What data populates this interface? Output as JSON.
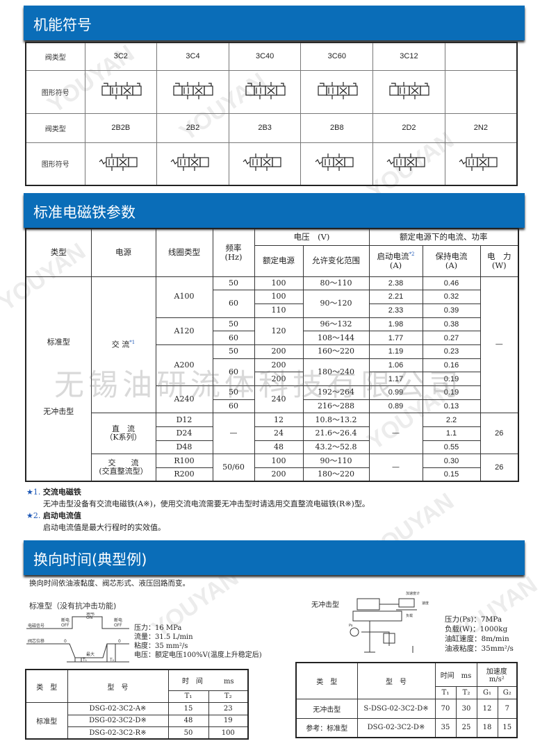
{
  "watermarks": {
    "brand": "YOUYAN",
    "company": "无锡油研流体科技有限公司"
  },
  "colors": {
    "banner": "#0a6db8",
    "star": "#1b56b5"
  },
  "section1": {
    "title": "机能符号",
    "row_label_type": "阀类型",
    "row_label_symbol": "图形符号",
    "types_row1": [
      "3C2",
      "3C4",
      "3C40",
      "3C60",
      "3C12",
      ""
    ],
    "types_row2": [
      "2B2B",
      "2B2",
      "2B3",
      "2B8",
      "2D2",
      "2N2"
    ]
  },
  "section2": {
    "title": "标准电磁铁参数",
    "headers": {
      "type": "类型",
      "power_source": "电源",
      "coil": "线圈类型",
      "freq": "频率",
      "freq_unit": "(Hz)",
      "voltage": "电压　(V)",
      "rated_v": "额定电源",
      "range": "允许变化范围",
      "current_power": "额定电源下的电流、功率",
      "start_current": "启动电流",
      "start_mark": "*2",
      "unit_a": "(A)",
      "hold_current": "保持电流",
      "power": "电　力",
      "power_unit": "(W)"
    },
    "type_std": "标准型",
    "type_noshock": "无冲击型",
    "src_ac": "交 流",
    "src_ac_mark": "*1",
    "src_dc": "直　流",
    "src_dc_sub": "（K系列）",
    "src_rect": "交　　流",
    "src_rect_sub": "(交直整流型）",
    "coils": [
      "A100",
      "A120",
      "A200",
      "A240",
      "D12",
      "D24",
      "D48",
      "R100",
      "R200"
    ],
    "freq": [
      "50",
      "60",
      "50",
      "60",
      "50",
      "60",
      "50",
      "60",
      "—",
      "50/60"
    ],
    "rated": [
      "100",
      "100",
      "110",
      "120",
      "200",
      "200",
      "200",
      "240",
      "12",
      "24",
      "48",
      "100",
      "200"
    ],
    "range": [
      "80～110",
      "90～120",
      "96～132",
      "108～144",
      "160～220",
      "180～240",
      "192～264",
      "216～288",
      "10.8～13.2",
      "21.6～26.4",
      "43.2～52.8",
      "90～110",
      "180～220"
    ],
    "start": [
      "2.38",
      "2.21",
      "2.33",
      "1.98",
      "1.77",
      "1.19",
      "1.06",
      "1.17",
      "0.99",
      "0.89",
      "—",
      "—"
    ],
    "hold": [
      "0.46",
      "0.32",
      "0.39",
      "0.38",
      "0.27",
      "0.23",
      "0.16",
      "0.19",
      "0.19",
      "0.13",
      "2.2",
      "1.1",
      "0.55",
      "0.30",
      "0.15"
    ],
    "power": [
      "—",
      "26",
      "26"
    ]
  },
  "notes": [
    {
      "mark": "★1.",
      "title": "交流电磁铁",
      "text": "无冲击型没备有交流电磁铁(A※)，使用交流电流需要无冲击型时请选用交直整流电磁铁(R※)型。"
    },
    {
      "mark": "★2.",
      "title": "启动电流值",
      "text": "启动电流值是最大行程时的实效值。"
    }
  ],
  "section3": {
    "title": "换向时间(典型例)",
    "intro": "换向时间依油液黏度、阀芯形式、液压回路而变。",
    "std": {
      "subtitle": "标准型（没有抗冲击功能)",
      "diagram": {
        "on": "通电",
        "on_en": "ON",
        "off": "断电",
        "off_en": "OFF",
        "signal": "电磁信号",
        "spool": "阀芯位移",
        "zero": "0",
        "max": "最大",
        "t1": "T₁",
        "t2": "T₂"
      },
      "params": [
        "压力：16 MPa",
        "流量：31.5 L/min",
        "粘度：35 mm²/s",
        "电压：额定电压100%V(温度上升稳定后)"
      ],
      "table": {
        "type": "类　型",
        "model": "型　号",
        "time": "时　间",
        "unit": "ms",
        "t1": "T₁",
        "t2": "T₂",
        "group": "标准型",
        "rows": [
          [
            "DSG-02-3C2-A※",
            "15",
            "23"
          ],
          [
            "DSG-02-3C2-D※",
            "48",
            "19"
          ],
          [
            "DSG-02-3C2-R※",
            "50",
            "100"
          ]
        ]
      }
    },
    "noshock": {
      "subtitle": "无冲击型",
      "diagram": {
        "accel": "加速度计",
        "speed": "速度",
        "load": "负载",
        "ps": "Ps"
      },
      "params": [
        "压力(Ps)：7MPa",
        "负载(W)：1000kg",
        "油缸速度：8m/min",
        "油液粘度：35mm²/s"
      ],
      "table": {
        "type": "类　型",
        "model": "型　号",
        "time": "时间　ms",
        "accel": "加速度",
        "accel_unit": "m/s²",
        "t1": "T₁",
        "t2": "T₂",
        "g1": "G₁",
        "g2": "G₂",
        "rows": [
          [
            "无冲击型",
            "S-DSG-02-3C2-D※",
            "70",
            "30",
            "12",
            "7"
          ],
          [
            "参考：标准型",
            "DSG-02-3C2-D※",
            "35",
            "25",
            "18",
            "15"
          ]
        ]
      }
    }
  }
}
